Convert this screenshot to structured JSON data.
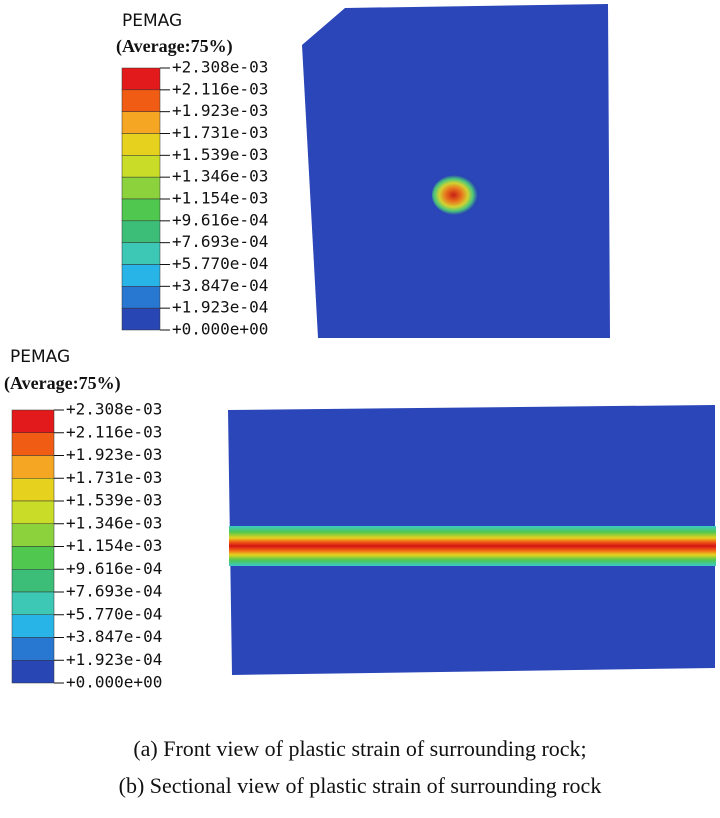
{
  "panels": [
    {
      "legend_title": "PEMAG",
      "legend_subtitle": "(Average:75%)",
      "legend_labels": [
        "+2.308e-03",
        "+2.116e-03",
        "+1.923e-03",
        "+1.731e-03",
        "+1.539e-03",
        "+1.346e-03",
        "+1.154e-03",
        "+9.616e-04",
        "+7.693e-04",
        "+5.770e-04",
        "+3.847e-04",
        "+1.923e-04",
        "+0.000e+00"
      ]
    },
    {
      "legend_title": "PEMAG",
      "legend_subtitle": "(Average:75%)",
      "legend_labels": [
        "+2.308e-03",
        "+2.116e-03",
        "+1.923e-03",
        "+1.731e-03",
        "+1.539e-03",
        "+1.346e-03",
        "+1.154e-03",
        "+9.616e-04",
        "+7.693e-04",
        "+5.770e-04",
        "+3.847e-04",
        "+1.923e-04",
        "+0.000e+00"
      ]
    }
  ],
  "captions": [
    "(a) Front view of plastic strain of surrounding rock;",
    "(b) Sectional view of plastic strain of surrounding rock"
  ]
}
